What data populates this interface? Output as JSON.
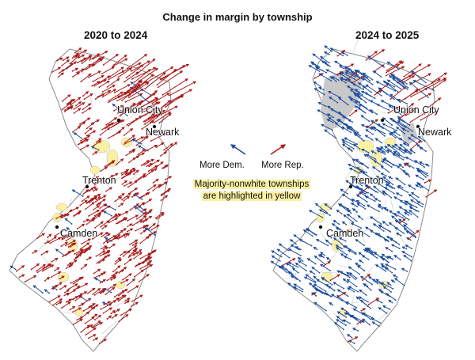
{
  "title": "Change in margin by township",
  "panels": [
    {
      "subtitle": "2020 to 2024",
      "dominant_shift": "Rep.",
      "cities": [
        "Union City",
        "Newark",
        "Trenton",
        "Camden"
      ]
    },
    {
      "subtitle": "2024 to 2025",
      "dominant_shift": "Dem.",
      "cities": [
        "Union City",
        "Newark",
        "Trenton",
        "Camden"
      ]
    }
  ],
  "legend": {
    "dem_label": "More Dem.",
    "rep_label": "More Rep.",
    "note_line1": "Majority-nonwhite townships",
    "note_line2": "are highlighted in yellow"
  },
  "colors": {
    "dem": "#1f4e9c",
    "rep": "#a81c1c",
    "highlight": "#fbf1a3",
    "no_data": "#c9c9c9",
    "border": "#9a9a9a"
  }
}
